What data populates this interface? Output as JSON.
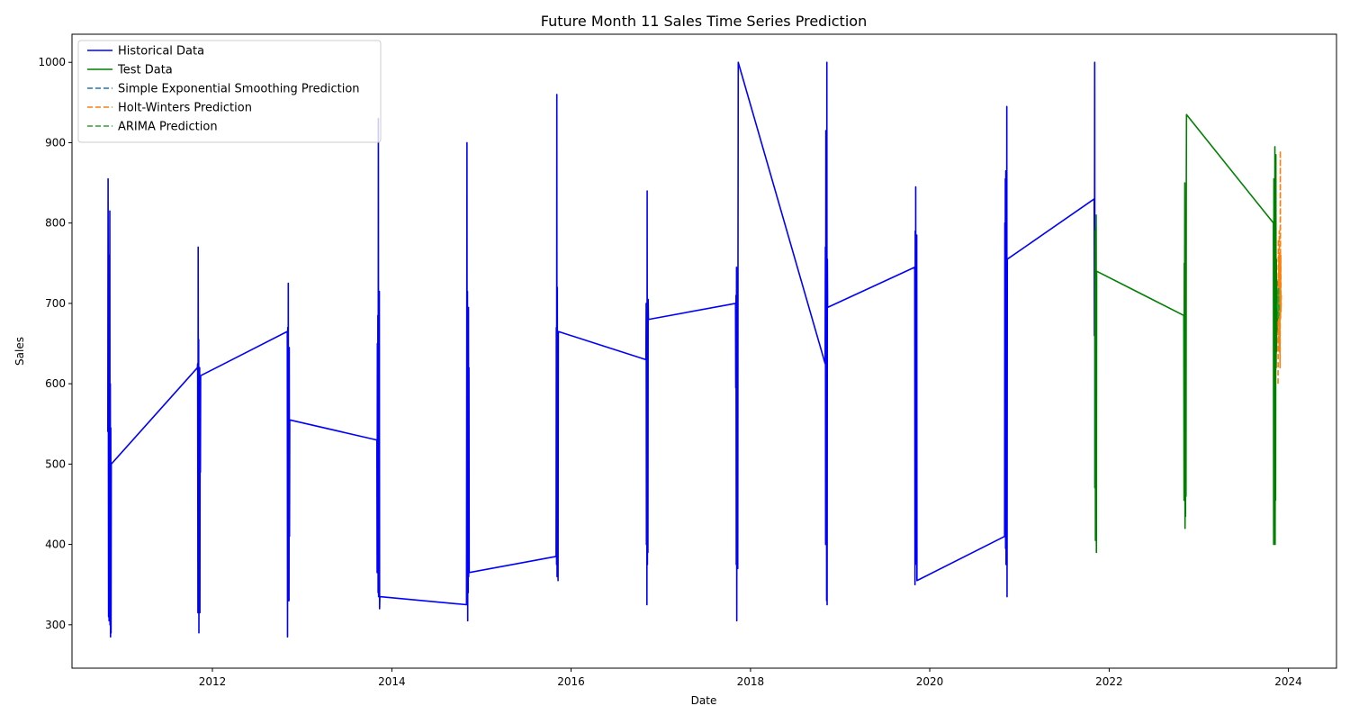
{
  "chart_data": {
    "type": "line",
    "title": "Future Month 11 Sales Time Series Prediction",
    "xlabel": "Date",
    "ylabel": "Sales",
    "xlim": [
      "2010-06-08",
      "2024-07-15"
    ],
    "ylim": [
      246,
      1035
    ],
    "x_ticks": [
      "2012",
      "2014",
      "2016",
      "2018",
      "2020",
      "2022",
      "2024"
    ],
    "y_ticks": [
      300,
      400,
      500,
      600,
      700,
      800,
      900,
      1000
    ],
    "grid": false,
    "legend_position": "top-left",
    "series": [
      {
        "name": "Historical Data",
        "color": "#0000ff",
        "style": "solid",
        "points": [
          [
            "2010-11-01",
            540
          ],
          [
            "2010-11-02",
            855
          ],
          [
            "2010-11-03",
            610
          ],
          [
            "2010-11-04",
            310
          ],
          [
            "2010-11-05",
            595
          ],
          [
            "2010-11-06",
            305
          ],
          [
            "2010-11-07",
            760
          ],
          [
            "2010-11-08",
            505
          ],
          [
            "2010-11-09",
            815
          ],
          [
            "2010-11-10",
            300
          ],
          [
            "2010-11-11",
            600
          ],
          [
            "2010-11-12",
            285
          ],
          [
            "2010-11-13",
            545
          ],
          [
            "2010-11-14",
            290
          ],
          [
            "2010-11-15",
            500
          ],
          [
            "2011-11-01",
            620
          ],
          [
            "2011-11-02",
            625
          ],
          [
            "2011-11-03",
            315
          ],
          [
            "2011-11-04",
            770
          ],
          [
            "2011-11-05",
            445
          ],
          [
            "2011-11-06",
            655
          ],
          [
            "2011-11-07",
            290
          ],
          [
            "2011-11-08",
            600
          ],
          [
            "2011-11-09",
            320
          ],
          [
            "2011-11-10",
            620
          ],
          [
            "2011-11-11",
            315
          ],
          [
            "2011-11-12",
            600
          ],
          [
            "2011-11-13",
            490
          ],
          [
            "2011-11-14",
            610
          ],
          [
            "2012-11-01",
            665
          ],
          [
            "2012-11-02",
            285
          ],
          [
            "2012-11-03",
            670
          ],
          [
            "2012-11-04",
            330
          ],
          [
            "2012-11-05",
            725
          ],
          [
            "2012-11-06",
            350
          ],
          [
            "2012-11-07",
            640
          ],
          [
            "2012-11-08",
            330
          ],
          [
            "2012-11-09",
            645
          ],
          [
            "2012-11-10",
            410
          ],
          [
            "2012-11-11",
            555
          ],
          [
            "2013-11-01",
            530
          ],
          [
            "2013-11-02",
            365
          ],
          [
            "2013-11-03",
            650
          ],
          [
            "2013-11-04",
            375
          ],
          [
            "2013-11-05",
            685
          ],
          [
            "2013-11-06",
            340
          ],
          [
            "2013-11-07",
            930
          ],
          [
            "2013-11-08",
            335
          ],
          [
            "2013-11-09",
            700
          ],
          [
            "2013-11-10",
            360
          ],
          [
            "2013-11-11",
            715
          ],
          [
            "2013-11-12",
            320
          ],
          [
            "2013-11-13",
            335
          ],
          [
            "2014-11-01",
            325
          ],
          [
            "2014-11-02",
            600
          ],
          [
            "2014-11-03",
            900
          ],
          [
            "2014-11-04",
            330
          ],
          [
            "2014-11-05",
            715
          ],
          [
            "2014-11-06",
            305
          ],
          [
            "2014-11-07",
            655
          ],
          [
            "2014-11-08",
            340
          ],
          [
            "2014-11-09",
            695
          ],
          [
            "2014-11-10",
            360
          ],
          [
            "2014-11-11",
            620
          ],
          [
            "2014-11-12",
            365
          ],
          [
            "2015-11-01",
            385
          ],
          [
            "2015-11-02",
            670
          ],
          [
            "2015-11-03",
            375
          ],
          [
            "2015-11-04",
            960
          ],
          [
            "2015-11-05",
            360
          ],
          [
            "2015-11-06",
            720
          ],
          [
            "2015-11-07",
            370
          ],
          [
            "2015-11-08",
            645
          ],
          [
            "2015-11-09",
            355
          ],
          [
            "2015-11-10",
            665
          ],
          [
            "2016-11-01",
            630
          ],
          [
            "2016-11-02",
            700
          ],
          [
            "2016-11-03",
            400
          ],
          [
            "2016-11-04",
            690
          ],
          [
            "2016-11-05",
            325
          ],
          [
            "2016-11-06",
            840
          ],
          [
            "2016-11-07",
            375
          ],
          [
            "2016-11-08",
            660
          ],
          [
            "2016-11-09",
            390
          ],
          [
            "2016-11-10",
            705
          ],
          [
            "2016-11-11",
            680
          ],
          [
            "2017-11-01",
            700
          ],
          [
            "2017-11-02",
            595
          ],
          [
            "2017-11-03",
            710
          ],
          [
            "2017-11-04",
            375
          ],
          [
            "2017-11-05",
            745
          ],
          [
            "2017-11-06",
            305
          ],
          [
            "2017-11-07",
            665
          ],
          [
            "2017-11-08",
            380
          ],
          [
            "2017-11-09",
            695
          ],
          [
            "2017-11-10",
            370
          ],
          [
            "2017-11-11",
            760
          ],
          [
            "2017-11-12",
            1000
          ],
          [
            "2018-11-01",
            625
          ],
          [
            "2018-11-02",
            770
          ],
          [
            "2018-11-03",
            400
          ],
          [
            "2018-11-04",
            915
          ],
          [
            "2018-11-05",
            410
          ],
          [
            "2018-11-06",
            880
          ],
          [
            "2018-11-07",
            330
          ],
          [
            "2018-11-08",
            1000
          ],
          [
            "2018-11-09",
            325
          ],
          [
            "2018-11-10",
            755
          ],
          [
            "2018-11-11",
            695
          ],
          [
            "2019-11-01",
            745
          ],
          [
            "2019-11-02",
            350
          ],
          [
            "2019-11-03",
            790
          ],
          [
            "2019-11-04",
            375
          ],
          [
            "2019-11-05",
            845
          ],
          [
            "2019-11-06",
            380
          ],
          [
            "2019-11-07",
            755
          ],
          [
            "2019-11-08",
            425
          ],
          [
            "2019-11-09",
            785
          ],
          [
            "2019-11-10",
            355
          ],
          [
            "2020-11-01",
            410
          ],
          [
            "2020-11-02",
            800
          ],
          [
            "2020-11-03",
            415
          ],
          [
            "2020-11-04",
            855
          ],
          [
            "2020-11-05",
            395
          ],
          [
            "2020-11-06",
            865
          ],
          [
            "2020-11-07",
            375
          ],
          [
            "2020-11-08",
            760
          ],
          [
            "2020-11-09",
            440
          ],
          [
            "2020-11-10",
            945
          ],
          [
            "2020-11-11",
            335
          ],
          [
            "2020-11-12",
            755
          ],
          [
            "2021-11-01",
            830
          ],
          [
            "2021-11-02",
            660
          ],
          [
            "2021-11-03",
            1000
          ],
          [
            "2021-11-04",
            470
          ]
        ]
      },
      {
        "name": "Test Data",
        "color": "#008000",
        "style": "solid",
        "points": [
          [
            "2021-11-04",
            470
          ],
          [
            "2021-11-05",
            790
          ],
          [
            "2021-11-06",
            405
          ],
          [
            "2021-11-07",
            795
          ],
          [
            "2021-11-08",
            440
          ],
          [
            "2021-11-09",
            810
          ],
          [
            "2021-11-10",
            390
          ],
          [
            "2021-11-11",
            740
          ],
          [
            "2022-11-01",
            685
          ],
          [
            "2022-11-02",
            455
          ],
          [
            "2022-11-03",
            750
          ],
          [
            "2022-11-04",
            645
          ],
          [
            "2022-11-05",
            850
          ],
          [
            "2022-11-06",
            420
          ],
          [
            "2022-11-07",
            795
          ],
          [
            "2022-11-08",
            435
          ],
          [
            "2022-11-09",
            805
          ],
          [
            "2022-11-10",
            460
          ],
          [
            "2022-11-11",
            830
          ],
          [
            "2022-11-12",
            935
          ],
          [
            "2023-11-01",
            800
          ],
          [
            "2023-11-02",
            400
          ],
          [
            "2023-11-03",
            855
          ],
          [
            "2023-11-04",
            435
          ],
          [
            "2023-11-05",
            780
          ],
          [
            "2023-11-06",
            460
          ],
          [
            "2023-11-07",
            895
          ],
          [
            "2023-11-08",
            400
          ],
          [
            "2023-11-09",
            870
          ],
          [
            "2023-11-10",
            455
          ],
          [
            "2023-11-11",
            885
          ],
          [
            "2023-11-12",
            620
          ],
          [
            "2023-11-13",
            755
          ],
          [
            "2023-11-14",
            640
          ],
          [
            "2023-11-15",
            730
          ],
          [
            "2023-11-16",
            665
          ],
          [
            "2023-11-17",
            700
          ],
          [
            "2023-11-18",
            680
          ],
          [
            "2023-11-19",
            695
          ]
        ]
      },
      {
        "name": "Simple Exponential Smoothing Prediction",
        "color": "#1f77b4",
        "style": "dashed",
        "points": [
          [
            "2023-11-18",
            690
          ],
          [
            "2023-11-19",
            690
          ],
          [
            "2023-11-20",
            690
          ],
          [
            "2023-11-21",
            690
          ],
          [
            "2023-11-22",
            690
          ]
        ]
      },
      {
        "name": "Holt-Winters Prediction",
        "color": "#ff7f0e",
        "style": "dashed",
        "points": [
          [
            "2023-11-20",
            600
          ],
          [
            "2023-11-21",
            780
          ],
          [
            "2023-11-22",
            650
          ],
          [
            "2023-11-23",
            760
          ],
          [
            "2023-11-24",
            640
          ],
          [
            "2023-11-25",
            790
          ],
          [
            "2023-11-26",
            655
          ],
          [
            "2023-11-27",
            730
          ],
          [
            "2023-11-28",
            620
          ],
          [
            "2023-11-29",
            890
          ],
          [
            "2023-11-30",
            680
          ],
          [
            "2023-12-01",
            760
          ],
          [
            "2023-12-02",
            690
          ],
          [
            "2023-12-03",
            710
          ]
        ]
      },
      {
        "name": "ARIMA Prediction",
        "color": "#2ca02c",
        "style": "dashed",
        "points": [
          [
            "2023-11-18",
            700
          ],
          [
            "2023-11-19",
            690
          ],
          [
            "2023-11-20",
            715
          ],
          [
            "2023-11-21",
            680
          ],
          [
            "2023-11-22",
            720
          ],
          [
            "2023-11-23",
            685
          ],
          [
            "2023-11-24",
            700
          ],
          [
            "2023-11-25",
            690
          ]
        ]
      }
    ]
  }
}
